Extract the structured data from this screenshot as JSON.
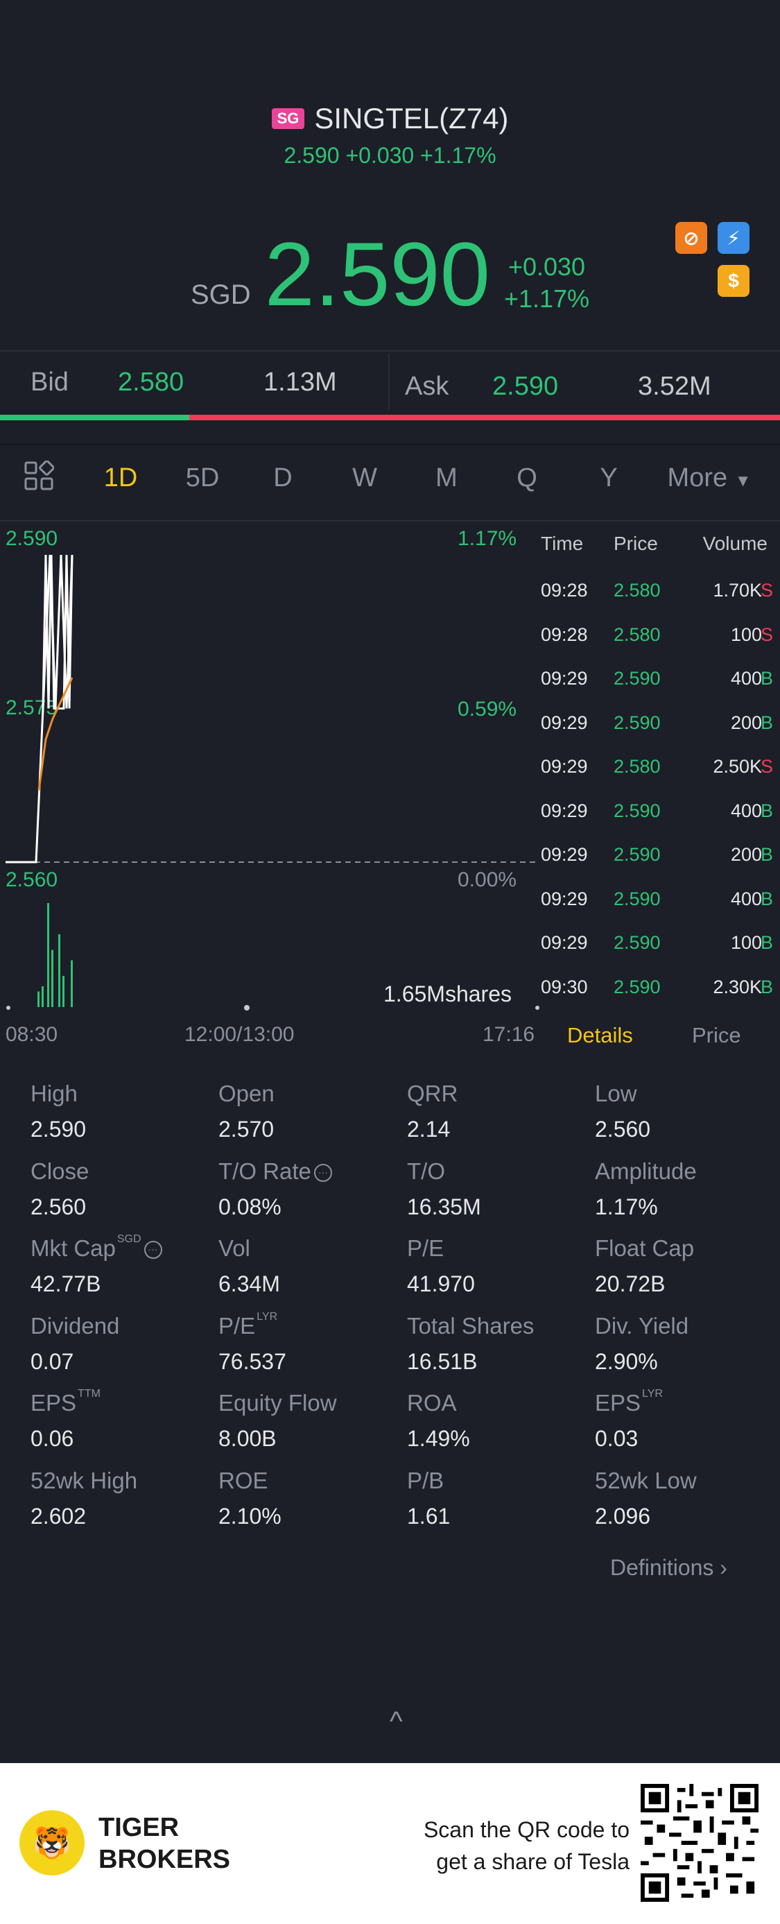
{
  "header": {
    "market_badge": "SG",
    "title": "SINGTEL(Z74)",
    "sub_price": "2.590",
    "sub_change": "+0.030",
    "sub_pct": "+1.17%",
    "currency": "SGD",
    "price": "2.590",
    "change": "+0.030",
    "change_pct": "+1.17%",
    "icons": [
      "no-stop-icon",
      "flash-1-icon",
      "dollar-icon"
    ]
  },
  "bidask": {
    "bid_label": "Bid",
    "bid_price": "2.580",
    "bid_volume": "1.13M",
    "ask_label": "Ask",
    "ask_price": "2.590",
    "ask_volume": "3.52M",
    "bid_ratio": 0.243
  },
  "periods": {
    "tabs": [
      "1D",
      "5D",
      "D",
      "W",
      "M",
      "Q",
      "Y"
    ],
    "active": "1D",
    "more_label": "More"
  },
  "chart": {
    "y_top": "2.590",
    "y_mid": "2.575",
    "y_bottom": "2.560",
    "pct_top": "1.17%",
    "pct_mid": "0.59%",
    "pct_bottom": "0.00%",
    "volume_label": "1.65Mshares",
    "x_start": "08:30",
    "x_mid": "12:00/13:00",
    "x_end": "17:16"
  },
  "chart_data": {
    "type": "line",
    "series": [
      {
        "values": [
          2.56,
          2.56,
          2.575,
          2.59,
          2.575,
          2.59,
          2.575,
          2.59
        ]
      },
      {
        "values": [
          2.567,
          2.572,
          2.574,
          2.576,
          2.578
        ]
      }
    ],
    "ylim": [
      2.56,
      2.59
    ],
    "volume_bars": [
      0.15,
      0.2,
      1.0,
      0.55,
      0.7,
      0.3,
      0.45
    ]
  },
  "ticks": {
    "headers": {
      "time": "Time",
      "price": "Price",
      "volume": "Volume"
    },
    "rows": [
      {
        "time": "09:28",
        "price": "2.580",
        "volume": "1.70K",
        "side": "S"
      },
      {
        "time": "09:28",
        "price": "2.580",
        "volume": "100",
        "side": "S"
      },
      {
        "time": "09:29",
        "price": "2.590",
        "volume": "400",
        "side": "B"
      },
      {
        "time": "09:29",
        "price": "2.590",
        "volume": "200",
        "side": "B"
      },
      {
        "time": "09:29",
        "price": "2.580",
        "volume": "2.50K",
        "side": "S"
      },
      {
        "time": "09:29",
        "price": "2.590",
        "volume": "400",
        "side": "B"
      },
      {
        "time": "09:29",
        "price": "2.590",
        "volume": "200",
        "side": "B"
      },
      {
        "time": "09:29",
        "price": "2.590",
        "volume": "400",
        "side": "B"
      },
      {
        "time": "09:29",
        "price": "2.590",
        "volume": "100",
        "side": "B"
      },
      {
        "time": "09:30",
        "price": "2.590",
        "volume": "2.30K",
        "side": "B"
      }
    ],
    "tab_details": "Details",
    "tab_price": "Price"
  },
  "stats": [
    [
      {
        "label": "High",
        "value": "2.590"
      },
      {
        "label": "Open",
        "value": "2.570"
      },
      {
        "label": "QRR",
        "value": "2.14"
      },
      {
        "label": "Low",
        "value": "2.560"
      }
    ],
    [
      {
        "label": "Close",
        "value": "2.560"
      },
      {
        "label": "T/O Rate",
        "value": "0.08%",
        "info": true
      },
      {
        "label": "T/O",
        "value": "16.35M"
      },
      {
        "label": "Amplitude",
        "value": "1.17%"
      }
    ],
    [
      {
        "label": "Mkt Cap",
        "value": "42.77B",
        "sup": "SGD",
        "info": true
      },
      {
        "label": "Vol",
        "value": "6.34M"
      },
      {
        "label": "P/E",
        "value": "41.970"
      },
      {
        "label": "Float Cap",
        "value": "20.72B"
      }
    ],
    [
      {
        "label": "Dividend",
        "value": "0.07"
      },
      {
        "label": "P/E",
        "value": "76.537",
        "sup": "LYR"
      },
      {
        "label": "Total Shares",
        "value": "16.51B"
      },
      {
        "label": "Div. Yield",
        "value": "2.90%"
      }
    ],
    [
      {
        "label": "EPS",
        "value": "0.06",
        "sup": "TTM"
      },
      {
        "label": "Equity Flow",
        "value": "8.00B"
      },
      {
        "label": "ROA",
        "value": "1.49%"
      },
      {
        "label": "EPS",
        "value": "0.03",
        "sup": "LYR"
      }
    ],
    [
      {
        "label": "52wk High",
        "value": "2.602"
      },
      {
        "label": "ROE",
        "value": "2.10%"
      },
      {
        "label": "P/B",
        "value": "1.61"
      },
      {
        "label": "52wk Low",
        "value": "2.096"
      }
    ]
  ],
  "definitions_label": "Definitions",
  "footer": {
    "brand_line1": "TIGER",
    "brand_line2": "BROKERS",
    "scan_line1": "Scan the QR code to",
    "scan_line2": "get a share of Tesla"
  }
}
